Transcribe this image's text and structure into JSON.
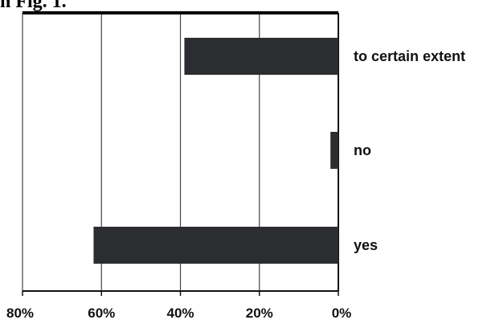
{
  "caption": "n Fig. 1.",
  "chart_data": {
    "type": "bar",
    "orientation": "horizontal",
    "categories": [
      "to certain extent",
      "no",
      "yes"
    ],
    "values": [
      39,
      2,
      62
    ],
    "xlim": [
      80,
      0
    ],
    "ticks": [
      80,
      60,
      40,
      20,
      0
    ],
    "tick_labels": [
      "80%",
      "60%",
      "40%",
      "20%",
      "0%"
    ],
    "grid": true,
    "bar_color": "#2b2d31"
  }
}
